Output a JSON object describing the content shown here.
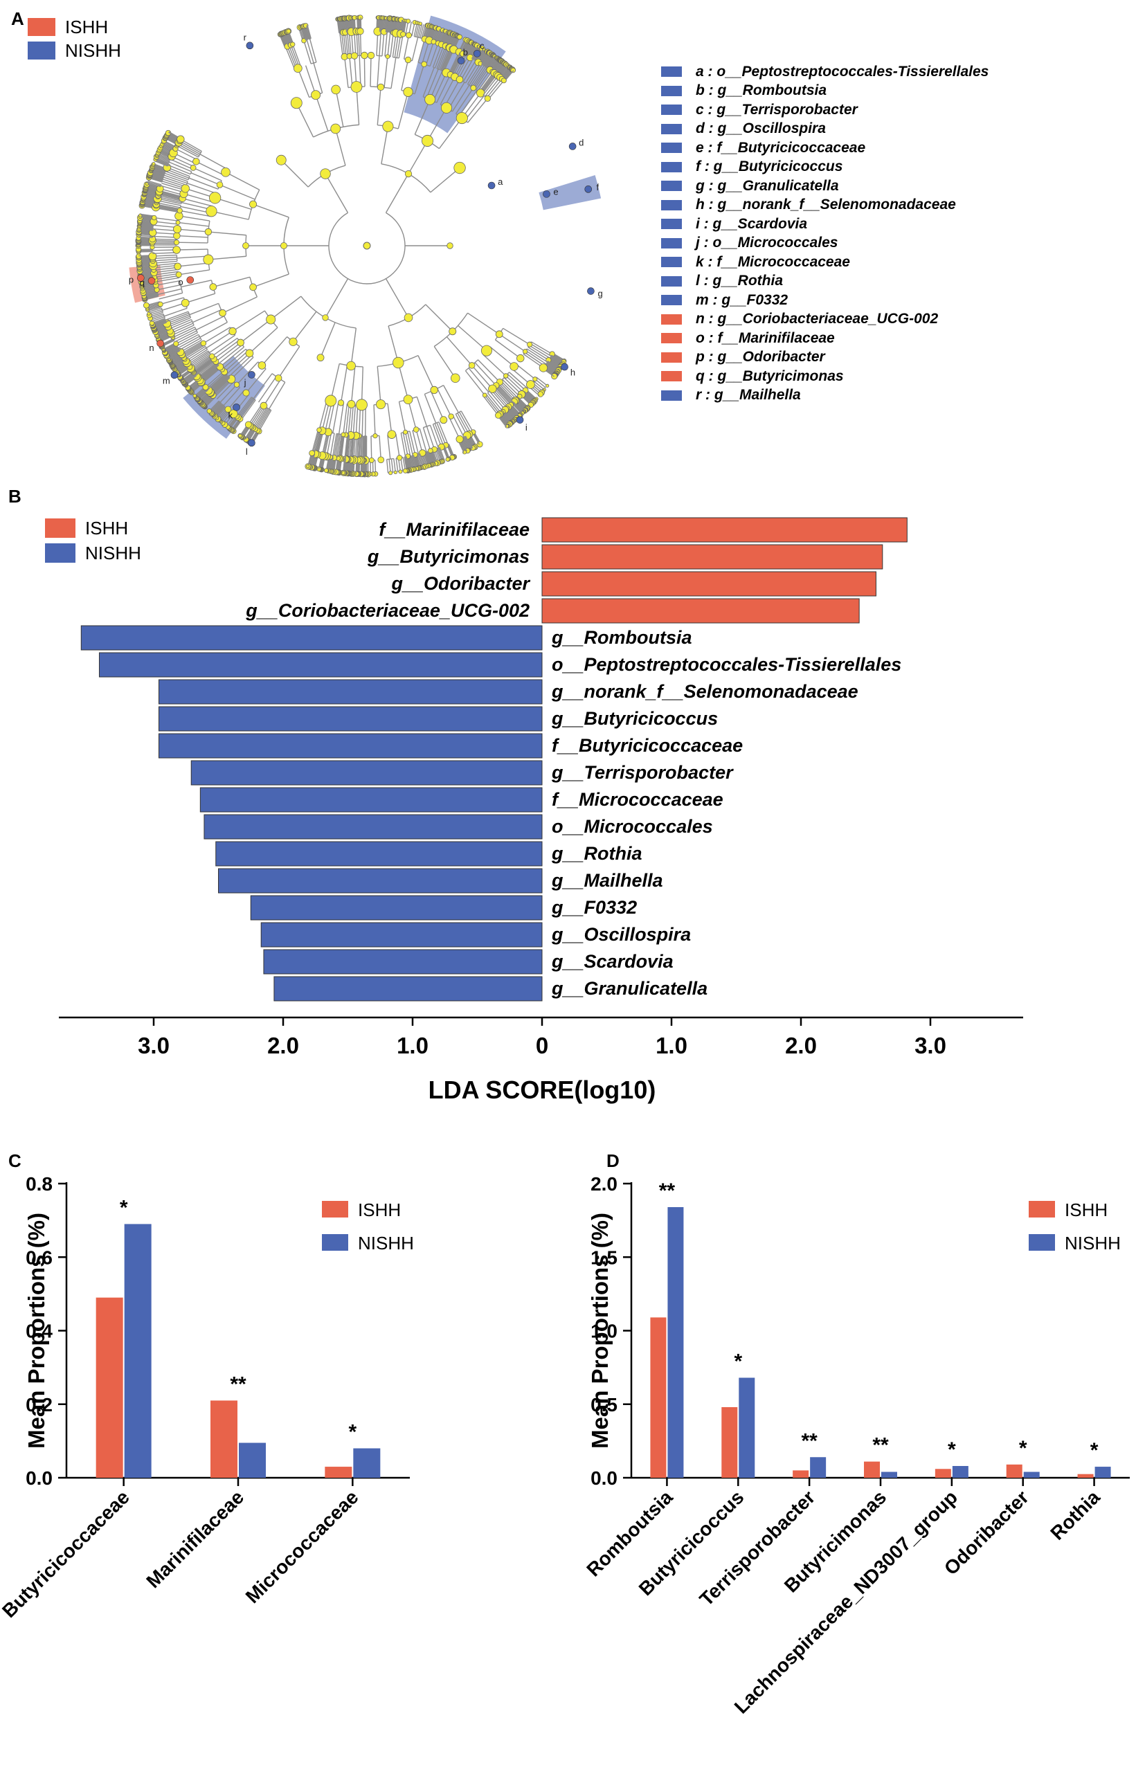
{
  "panels": {
    "a": "A",
    "b": "B",
    "c": "C",
    "d": "D"
  },
  "colors": {
    "ishh": "#E8634A",
    "nishh": "#4A66B2",
    "node": "#F2EC3B",
    "branch": "#8C8C8C"
  },
  "groups": {
    "ishh": "ISHH",
    "nishh": "NISHH"
  },
  "cladogram": {
    "node_labels": [
      "a",
      "b",
      "c",
      "d",
      "e",
      "f",
      "g",
      "h",
      "i",
      "j",
      "k",
      "l",
      "m",
      "n",
      "o",
      "p",
      "q",
      "r"
    ],
    "legend": [
      {
        "text": "a : o__Peptostreptococcales-Tissierellales",
        "group": "nishh"
      },
      {
        "text": "b : g__Romboutsia",
        "group": "nishh"
      },
      {
        "text": "c : g__Terrisporobacter",
        "group": "nishh"
      },
      {
        "text": "d : g__Oscillospira",
        "group": "nishh"
      },
      {
        "text": "e : f__Butyricicoccaceae",
        "group": "nishh"
      },
      {
        "text": "f : g__Butyricicoccus",
        "group": "nishh"
      },
      {
        "text": "g : g__Granulicatella",
        "group": "nishh"
      },
      {
        "text": "h : g__norank_f__Selenomonadaceae",
        "group": "nishh"
      },
      {
        "text": "i : g__Scardovia",
        "group": "nishh"
      },
      {
        "text": "j : o__Micrococcales",
        "group": "nishh"
      },
      {
        "text": "k : f__Micrococcaceae",
        "group": "nishh"
      },
      {
        "text": "l : g__Rothia",
        "group": "nishh"
      },
      {
        "text": "m : g__F0332",
        "group": "nishh"
      },
      {
        "text": "n : g__Coriobacteriaceae_UCG-002",
        "group": "ishh"
      },
      {
        "text": "o : f__Marinifilaceae",
        "group": "ishh"
      },
      {
        "text": "p : g__Odoribacter",
        "group": "ishh"
      },
      {
        "text": "q : g__Butyricimonas",
        "group": "ishh"
      },
      {
        "text": "r : g__Mailhella",
        "group": "nishh"
      }
    ]
  },
  "chart_data": [
    {
      "panel": "B",
      "type": "bar",
      "orientation": "horizontal",
      "xlabel": "LDA SCORE(log10)",
      "xlim": [
        -3.6,
        3.7
      ],
      "tick_labels": [
        "3.0",
        "2.0",
        "1.0",
        "0",
        "1.0",
        "2.0",
        "3.0"
      ],
      "tick_values": [
        -3,
        -2,
        -1,
        0,
        1,
        2,
        3
      ],
      "bars": [
        {
          "label": "f__Marinifilaceae",
          "value": 2.82,
          "group": "ishh"
        },
        {
          "label": "g__Butyricimonas",
          "value": 2.63,
          "group": "ishh"
        },
        {
          "label": "g__Odoribacter",
          "value": 2.58,
          "group": "ishh"
        },
        {
          "label": "g__Coriobacteriaceae_UCG-002",
          "value": 2.45,
          "group": "ishh"
        },
        {
          "label": "g__Romboutsia",
          "value": -3.56,
          "group": "nishh"
        },
        {
          "label": "o__Peptostreptococcales-Tissierellales",
          "value": -3.42,
          "group": "nishh"
        },
        {
          "label": "g__norank_f__Selenomonadaceae",
          "value": -2.96,
          "group": "nishh"
        },
        {
          "label": "g__Butyricicoccus",
          "value": -2.96,
          "group": "nishh"
        },
        {
          "label": "f__Butyricicoccaceae",
          "value": -2.96,
          "group": "nishh"
        },
        {
          "label": "g__Terrisporobacter",
          "value": -2.71,
          "group": "nishh"
        },
        {
          "label": "f__Micrococcaceae",
          "value": -2.64,
          "group": "nishh"
        },
        {
          "label": "o__Micrococcales",
          "value": -2.61,
          "group": "nishh"
        },
        {
          "label": "g__Rothia",
          "value": -2.52,
          "group": "nishh"
        },
        {
          "label": "g__Mailhella",
          "value": -2.5,
          "group": "nishh"
        },
        {
          "label": "g__F0332",
          "value": -2.25,
          "group": "nishh"
        },
        {
          "label": "g__Oscillospira",
          "value": -2.17,
          "group": "nishh"
        },
        {
          "label": "g__Scardovia",
          "value": -2.15,
          "group": "nishh"
        },
        {
          "label": "g__Granulicatella",
          "value": -2.07,
          "group": "nishh"
        }
      ]
    },
    {
      "panel": "C",
      "type": "bar",
      "ylabel": "Mean Proportions (%)",
      "ylim": [
        0,
        0.8
      ],
      "yticks": [
        0,
        0.2,
        0.4,
        0.6,
        0.8
      ],
      "ytick_labels": [
        "0.0",
        "0.2",
        "0.4",
        "0.6",
        "0.8"
      ],
      "categories": [
        "Butyricicoccaceae",
        "Marinifilaceae",
        "Micrococcaceae"
      ],
      "series": [
        {
          "name": "ISHH",
          "values": [
            0.49,
            0.21,
            0.03
          ]
        },
        {
          "name": "NISHH",
          "values": [
            0.69,
            0.095,
            0.08
          ]
        }
      ],
      "significance": [
        "*",
        "**",
        "*"
      ]
    },
    {
      "panel": "D",
      "type": "bar",
      "ylabel": "Mean Proportions (%)",
      "ylim": [
        0,
        2.0
      ],
      "yticks": [
        0,
        0.5,
        1.0,
        1.5,
        2.0
      ],
      "ytick_labels": [
        "0.0",
        "0.5",
        "1.0",
        "1.5",
        "2.0"
      ],
      "categories": [
        "Romboutsia",
        "Butyricicoccus",
        "Terrisporobacter",
        "Butyricimonas",
        "Lachnospiraceae_ND3007_group",
        "Odoribacter",
        "Rothia"
      ],
      "series": [
        {
          "name": "ISHH",
          "values": [
            1.09,
            0.48,
            0.05,
            0.11,
            0.06,
            0.09,
            0.025
          ]
        },
        {
          "name": "NISHH",
          "values": [
            1.84,
            0.68,
            0.14,
            0.04,
            0.08,
            0.04,
            0.075
          ]
        }
      ],
      "significance": [
        "**",
        "*",
        "**",
        "**",
        "*",
        "*",
        "*"
      ]
    }
  ]
}
